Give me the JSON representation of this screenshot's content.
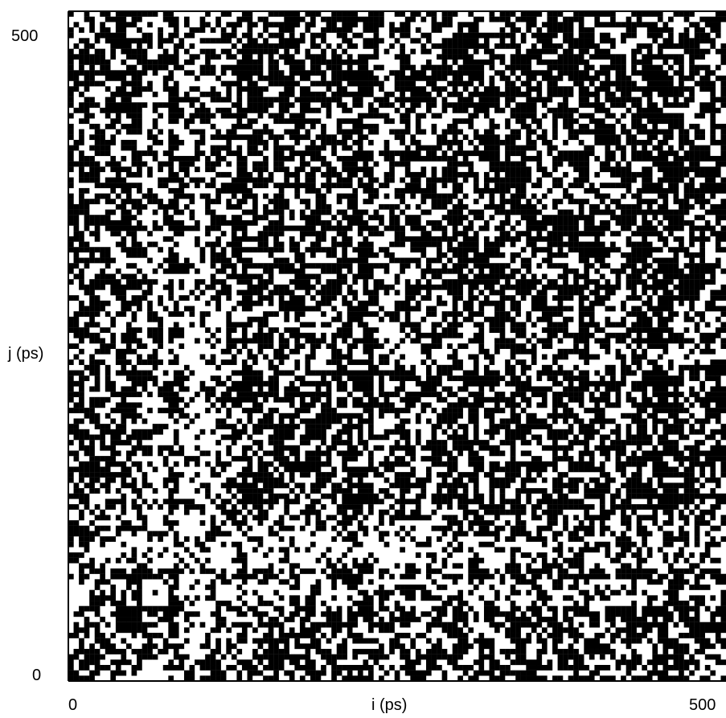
{
  "chart_data": {
    "type": "heatmap",
    "title": "",
    "xlabel": "i (ps)",
    "ylabel": "j (ps)",
    "xlim": [
      0,
      500
    ],
    "ylim": [
      0,
      500
    ],
    "x_ticks": [
      "0",
      "500"
    ],
    "y_ticks": [
      "0",
      "500"
    ],
    "symmetric": true,
    "mark_color": "#000000",
    "background_color": "#ffffff",
    "segments": [
      {
        "start": 0,
        "end": 48,
        "density": 0.72
      },
      {
        "start": 48,
        "end": 58,
        "density": 0.88
      },
      {
        "start": 58,
        "end": 75,
        "density": 0.55
      },
      {
        "start": 75,
        "end": 85,
        "density": 0.78
      },
      {
        "start": 85,
        "end": 110,
        "density": 0.45
      },
      {
        "start": 110,
        "end": 128,
        "density": 0.62
      },
      {
        "start": 128,
        "end": 165,
        "density": 0.82
      },
      {
        "start": 165,
        "end": 205,
        "density": 0.74
      },
      {
        "start": 205,
        "end": 232,
        "density": 0.86
      },
      {
        "start": 232,
        "end": 252,
        "density": 0.55
      },
      {
        "start": 252,
        "end": 262,
        "density": 0.82
      },
      {
        "start": 262,
        "end": 290,
        "density": 0.66
      },
      {
        "start": 290,
        "end": 300,
        "density": 0.85
      },
      {
        "start": 300,
        "end": 335,
        "density": 0.72
      },
      {
        "start": 335,
        "end": 345,
        "density": 0.88
      },
      {
        "start": 345,
        "end": 370,
        "density": 0.78
      },
      {
        "start": 370,
        "end": 395,
        "density": 0.84
      },
      {
        "start": 395,
        "end": 425,
        "density": 0.7
      },
      {
        "start": 425,
        "end": 470,
        "density": 0.86
      },
      {
        "start": 470,
        "end": 500,
        "density": 0.74
      }
    ]
  }
}
